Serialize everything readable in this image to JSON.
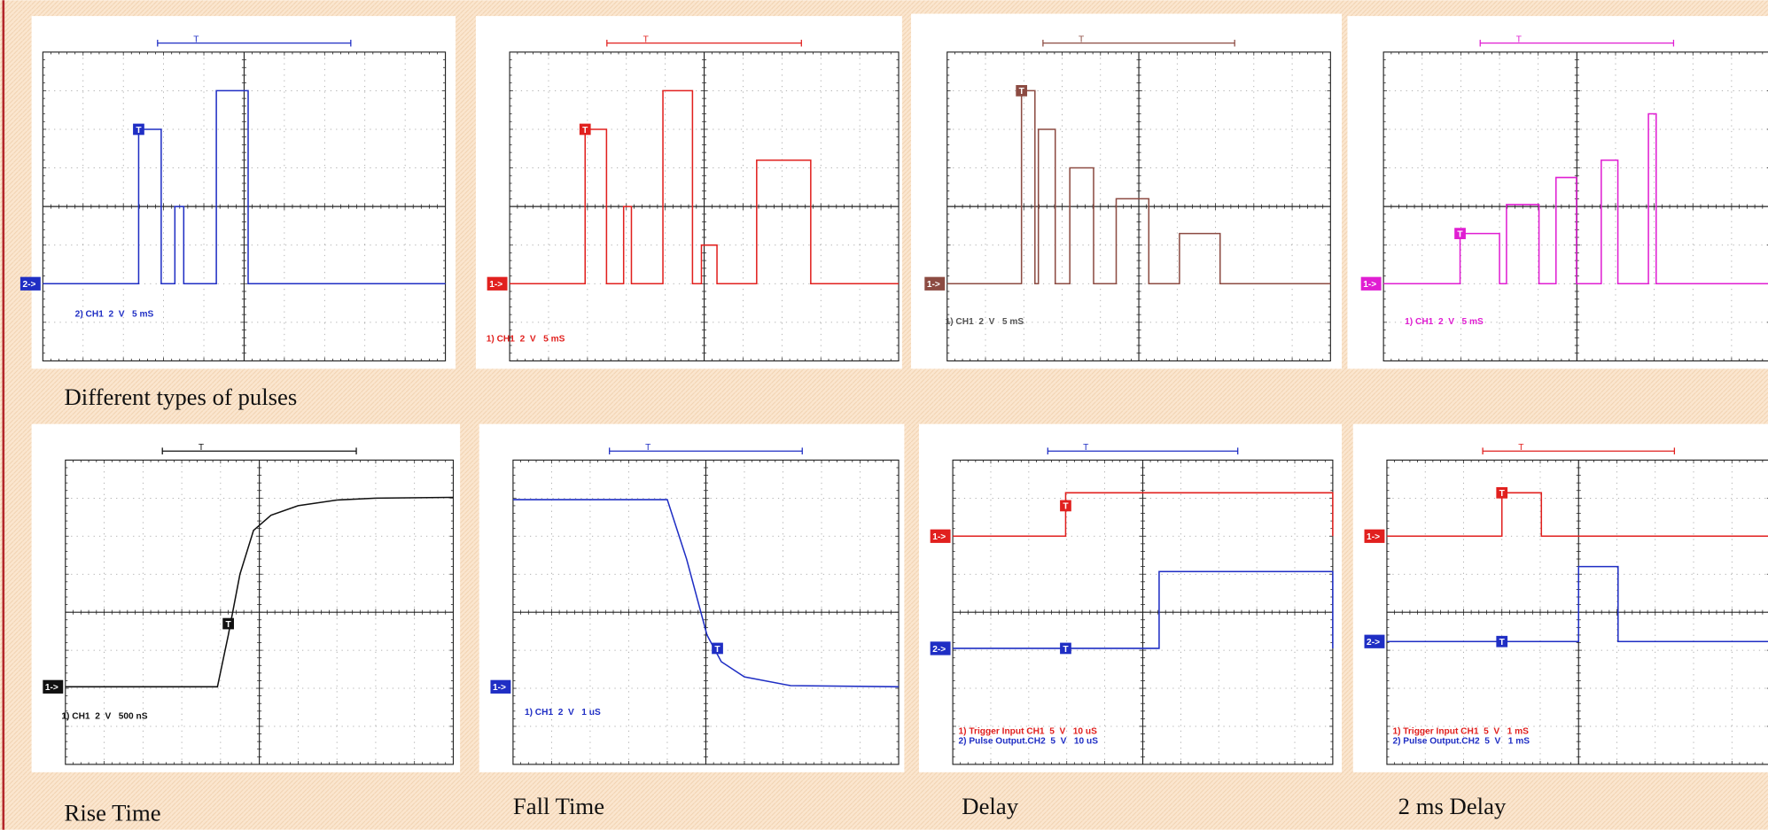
{
  "captions": {
    "pulses": "Different types of  pulses",
    "rise": "Rise Time",
    "fall": "Fall Time",
    "delay": "Delay",
    "delay_2ms": "2 ms Delay"
  },
  "panels": [
    {
      "scale": [
        "2) CH1  2  V   5 mS"
      ],
      "channels": [
        "2->"
      ],
      "triggers": [
        "T"
      ],
      "timebase": "T"
    },
    {
      "scale": [
        "1) CH1  2  V   5 mS"
      ],
      "channels": [
        "1->"
      ],
      "triggers": [
        "T"
      ],
      "timebase": "T"
    },
    {
      "scale": [
        "1) CH1  2  V   5 mS"
      ],
      "channels": [
        "1->"
      ],
      "triggers": [
        "T"
      ],
      "timebase": "T"
    },
    {
      "scale": [
        "1) CH1  2  V   5 mS"
      ],
      "channels": [
        "1->"
      ],
      "triggers": [
        "T"
      ],
      "timebase": "T"
    },
    {
      "scale": [
        "1) CH1  2  V   500 nS"
      ],
      "channels": [
        "1->"
      ],
      "triggers": [
        "T"
      ],
      "timebase": "T"
    },
    {
      "scale": [
        "1) CH1  2  V   1 uS"
      ],
      "channels": [
        "1->"
      ],
      "triggers": [
        "T"
      ],
      "timebase": "T"
    },
    {
      "scale": [
        "1) Trigger Input CH1  5  V   10 uS",
        "2) Pulse Output.CH2  5  V   10 uS"
      ],
      "channels": [
        "1->",
        "2->"
      ],
      "triggers": [
        "T",
        "T"
      ],
      "timebase": "T"
    },
    {
      "scale": [
        "1) Trigger Input CH1  5  V   1 mS",
        "2) Pulse Output.CH2  5  V   1 mS"
      ],
      "channels": [
        "1->",
        "2->"
      ],
      "triggers": [
        "T",
        "T"
      ],
      "timebase": "T"
    }
  ]
}
